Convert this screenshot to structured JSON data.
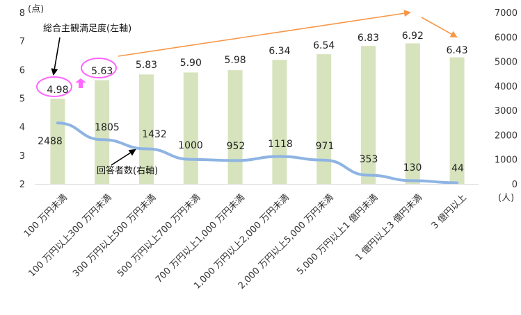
{
  "chart_data": {
    "type": "bar",
    "categories": [
      "100 万円未満",
      "100 万円以上300 万円未満",
      "300 万円以上500 万円未満",
      "500 万円以上700 万円未満",
      "700 万円以上1,000 万円未満",
      "1,000 万円以上2,000 万円未満",
      "2,000 万円以上5,000 万円未満",
      "5,000 万円以上1 億円未満",
      "1 億円以上3 億円未満",
      "3 億円以上"
    ],
    "series": [
      {
        "name": "総合主観満足度(左軸)",
        "type": "bar",
        "axis": "left",
        "values": [
          4.98,
          5.63,
          5.83,
          5.9,
          5.98,
          6.34,
          6.54,
          6.83,
          6.92,
          6.43
        ],
        "labels": [
          "4.98",
          "5.63",
          "5.83",
          "5.90",
          "5.98",
          "6.34",
          "6.54",
          "6.83",
          "6.92",
          "6.43"
        ],
        "color": "#d6e3bc"
      },
      {
        "name": "回答者数(右軸)",
        "type": "line",
        "axis": "right",
        "values": [
          2488,
          1805,
          1432,
          1000,
          952,
          1118,
          971,
          353,
          130,
          44
        ],
        "labels": [
          "2488",
          "1805",
          "1432",
          "1000",
          "952",
          "1118",
          "971",
          "353",
          "130",
          "44"
        ],
        "color": "#8eb4e3"
      }
    ],
    "y_left": {
      "unit": "(点)",
      "ticks": [
        "2",
        "3",
        "4",
        "5",
        "6",
        "7",
        "8"
      ],
      "ylim": [
        2,
        8
      ]
    },
    "y_right": {
      "unit": "(人)",
      "ticks": [
        "0",
        "1000",
        "2000",
        "3000",
        "4000",
        "5000",
        "6000",
        "7000"
      ],
      "ylim": [
        0,
        7000
      ]
    },
    "grid": false,
    "legend": "none",
    "colors": {
      "trend_arrow": "#f79646",
      "highlight": "#ff66ff",
      "line": "#8eb4e3",
      "bar": "#d6e3bc"
    }
  }
}
